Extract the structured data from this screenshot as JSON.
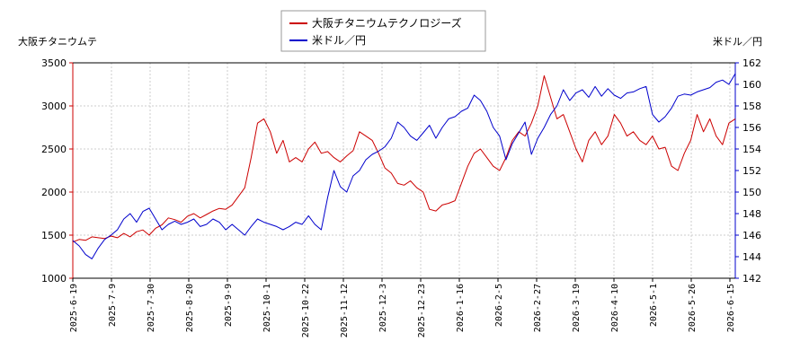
{
  "chart_data": {
    "type": "line",
    "left_axis_label": "大阪チタニウムテ",
    "right_axis_label": "米ドル／円",
    "left_ylim": [
      1000,
      3500
    ],
    "left_yticks": [
      "1000",
      "1500",
      "2000",
      "2500",
      "3000",
      "3500"
    ],
    "right_ylim": [
      142,
      162
    ],
    "right_yticks": [
      "142",
      "144",
      "146",
      "148",
      "150",
      "152",
      "154",
      "156",
      "158",
      "160",
      "162"
    ],
    "x_ticks": [
      "2025-6-19",
      "2025-7-9",
      "2025-7-30",
      "2025-8-20",
      "2025-9-9",
      "2025-10-1",
      "2025-10-22",
      "2025-11-12",
      "2025-12-3",
      "2025-12-23",
      "2026-1-16",
      "2026-2-5",
      "2026-2-27",
      "2026-3-19",
      "2026-4-10",
      "2026-5-1",
      "2026-5-26",
      "2026-6-15"
    ],
    "grid": true,
    "legend_position": "top-center",
    "series": [
      {
        "name": "大阪チタニウムテクノロジーズ",
        "axis": "left",
        "color": "#cc0000",
        "points": [
          [
            0,
            1420
          ],
          [
            1,
            1450
          ],
          [
            2,
            1440
          ],
          [
            3,
            1480
          ],
          [
            4,
            1470
          ],
          [
            5,
            1460
          ],
          [
            6,
            1490
          ],
          [
            7,
            1470
          ],
          [
            8,
            1520
          ],
          [
            9,
            1480
          ],
          [
            10,
            1540
          ],
          [
            11,
            1560
          ],
          [
            12,
            1500
          ],
          [
            13,
            1580
          ],
          [
            14,
            1620
          ],
          [
            15,
            1700
          ],
          [
            16,
            1680
          ],
          [
            17,
            1650
          ],
          [
            18,
            1720
          ],
          [
            19,
            1750
          ],
          [
            20,
            1700
          ],
          [
            21,
            1740
          ],
          [
            22,
            1780
          ],
          [
            23,
            1810
          ],
          [
            24,
            1800
          ],
          [
            25,
            1850
          ],
          [
            26,
            1950
          ],
          [
            27,
            2050
          ],
          [
            28,
            2400
          ],
          [
            29,
            2800
          ],
          [
            30,
            2850
          ],
          [
            31,
            2700
          ],
          [
            32,
            2450
          ],
          [
            33,
            2600
          ],
          [
            34,
            2350
          ],
          [
            35,
            2400
          ],
          [
            36,
            2350
          ],
          [
            37,
            2500
          ],
          [
            38,
            2580
          ],
          [
            39,
            2450
          ],
          [
            40,
            2470
          ],
          [
            41,
            2400
          ],
          [
            42,
            2350
          ],
          [
            43,
            2420
          ],
          [
            44,
            2480
          ],
          [
            45,
            2700
          ],
          [
            46,
            2650
          ],
          [
            47,
            2600
          ],
          [
            48,
            2450
          ],
          [
            49,
            2280
          ],
          [
            50,
            2220
          ],
          [
            51,
            2100
          ],
          [
            52,
            2080
          ],
          [
            53,
            2130
          ],
          [
            54,
            2050
          ],
          [
            55,
            2000
          ],
          [
            56,
            1800
          ],
          [
            57,
            1780
          ],
          [
            58,
            1850
          ],
          [
            59,
            1870
          ],
          [
            60,
            1900
          ],
          [
            61,
            2100
          ],
          [
            62,
            2300
          ],
          [
            63,
            2450
          ],
          [
            64,
            2500
          ],
          [
            65,
            2400
          ],
          [
            66,
            2300
          ],
          [
            67,
            2250
          ],
          [
            68,
            2400
          ],
          [
            69,
            2600
          ],
          [
            70,
            2700
          ],
          [
            71,
            2650
          ],
          [
            72,
            2800
          ],
          [
            73,
            3000
          ],
          [
            74,
            3350
          ],
          [
            75,
            3100
          ],
          [
            76,
            2850
          ],
          [
            77,
            2900
          ],
          [
            78,
            2700
          ],
          [
            79,
            2500
          ],
          [
            80,
            2350
          ],
          [
            81,
            2600
          ],
          [
            82,
            2700
          ],
          [
            83,
            2550
          ],
          [
            84,
            2650
          ],
          [
            85,
            2900
          ],
          [
            86,
            2800
          ],
          [
            87,
            2650
          ],
          [
            88,
            2700
          ],
          [
            89,
            2600
          ],
          [
            90,
            2550
          ],
          [
            91,
            2650
          ],
          [
            92,
            2500
          ],
          [
            93,
            2520
          ],
          [
            94,
            2300
          ],
          [
            95,
            2250
          ],
          [
            96,
            2450
          ],
          [
            97,
            2600
          ],
          [
            98,
            2900
          ],
          [
            99,
            2700
          ],
          [
            100,
            2850
          ],
          [
            101,
            2650
          ],
          [
            102,
            2550
          ],
          [
            103,
            2800
          ],
          [
            104,
            2850
          ]
        ]
      },
      {
        "name": "米ドル／円",
        "axis": "right",
        "color": "#0000cc",
        "points": [
          [
            0,
            145.5
          ],
          [
            1,
            145.0
          ],
          [
            2,
            144.2
          ],
          [
            3,
            143.8
          ],
          [
            4,
            144.8
          ],
          [
            5,
            145.6
          ],
          [
            6,
            146.0
          ],
          [
            7,
            146.5
          ],
          [
            8,
            147.5
          ],
          [
            9,
            148.0
          ],
          [
            10,
            147.2
          ],
          [
            11,
            148.2
          ],
          [
            12,
            148.5
          ],
          [
            13,
            147.5
          ],
          [
            14,
            146.5
          ],
          [
            15,
            147.0
          ],
          [
            16,
            147.3
          ],
          [
            17,
            147.0
          ],
          [
            18,
            147.2
          ],
          [
            19,
            147.5
          ],
          [
            20,
            146.8
          ],
          [
            21,
            147.0
          ],
          [
            22,
            147.5
          ],
          [
            23,
            147.2
          ],
          [
            24,
            146.5
          ],
          [
            25,
            147.0
          ],
          [
            26,
            146.5
          ],
          [
            27,
            146.0
          ],
          [
            28,
            146.8
          ],
          [
            29,
            147.5
          ],
          [
            30,
            147.2
          ],
          [
            31,
            147.0
          ],
          [
            32,
            146.8
          ],
          [
            33,
            146.5
          ],
          [
            34,
            146.8
          ],
          [
            35,
            147.2
          ],
          [
            36,
            147.0
          ],
          [
            37,
            147.8
          ],
          [
            38,
            147.0
          ],
          [
            39,
            146.5
          ],
          [
            40,
            149.5
          ],
          [
            41,
            152.0
          ],
          [
            42,
            150.5
          ],
          [
            43,
            150.0
          ],
          [
            44,
            151.5
          ],
          [
            45,
            152.0
          ],
          [
            46,
            153.0
          ],
          [
            47,
            153.5
          ],
          [
            48,
            153.8
          ],
          [
            49,
            154.2
          ],
          [
            50,
            155.0
          ],
          [
            51,
            156.5
          ],
          [
            52,
            156.0
          ],
          [
            53,
            155.2
          ],
          [
            54,
            154.8
          ],
          [
            55,
            155.5
          ],
          [
            56,
            156.2
          ],
          [
            57,
            155.0
          ],
          [
            58,
            156.0
          ],
          [
            59,
            156.8
          ],
          [
            60,
            157.0
          ],
          [
            61,
            157.5
          ],
          [
            62,
            157.8
          ],
          [
            63,
            159.0
          ],
          [
            64,
            158.5
          ],
          [
            65,
            157.5
          ],
          [
            66,
            156.0
          ],
          [
            67,
            155.2
          ],
          [
            68,
            153.0
          ],
          [
            69,
            154.5
          ],
          [
            70,
            155.5
          ],
          [
            71,
            156.5
          ],
          [
            72,
            153.5
          ],
          [
            73,
            155.0
          ],
          [
            74,
            156.0
          ],
          [
            75,
            157.2
          ],
          [
            76,
            158.0
          ],
          [
            77,
            159.5
          ],
          [
            78,
            158.5
          ],
          [
            79,
            159.2
          ],
          [
            80,
            159.5
          ],
          [
            81,
            158.8
          ],
          [
            82,
            159.8
          ],
          [
            83,
            158.9
          ],
          [
            84,
            159.6
          ],
          [
            85,
            159.0
          ],
          [
            86,
            158.7
          ],
          [
            87,
            159.2
          ],
          [
            88,
            159.3
          ],
          [
            89,
            159.6
          ],
          [
            90,
            159.8
          ],
          [
            91,
            157.2
          ],
          [
            92,
            156.5
          ],
          [
            93,
            157.0
          ],
          [
            94,
            157.8
          ],
          [
            95,
            158.9
          ],
          [
            96,
            159.1
          ],
          [
            97,
            159.0
          ],
          [
            98,
            159.3
          ],
          [
            99,
            159.5
          ],
          [
            100,
            159.7
          ],
          [
            101,
            160.2
          ],
          [
            102,
            160.4
          ],
          [
            103,
            160.0
          ],
          [
            104,
            161.0
          ]
        ]
      }
    ]
  }
}
